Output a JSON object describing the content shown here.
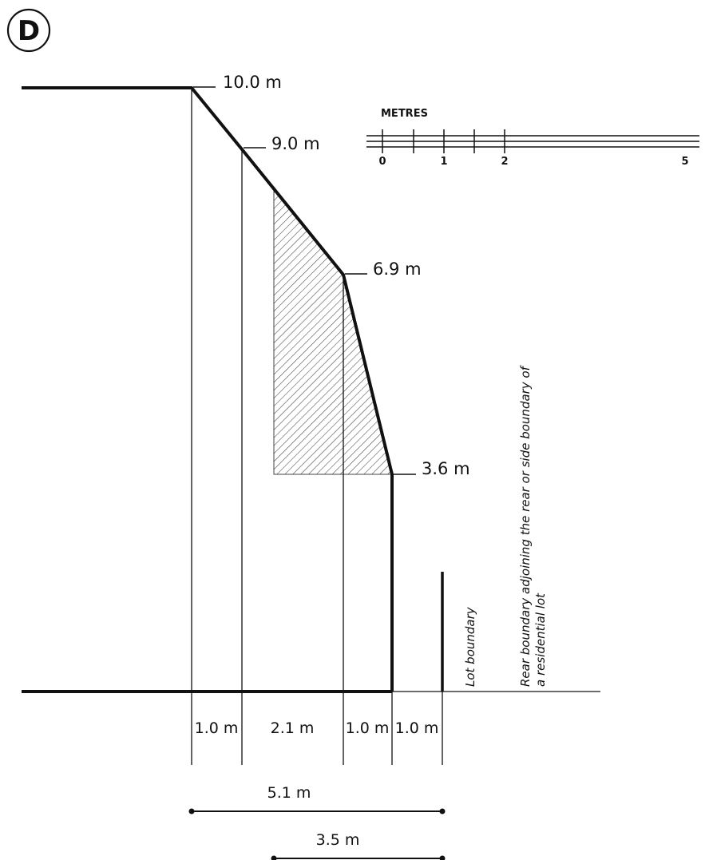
{
  "badge": {
    "letter": "D"
  },
  "heights": {
    "h1": "10.0 m",
    "h2": "9.0 m",
    "h3": "6.9 m",
    "h4": "3.6 m"
  },
  "scale": {
    "title": "METRES",
    "ticks": [
      "0",
      "1",
      "2",
      "5"
    ]
  },
  "dimensions": {
    "seg1": "1.0 m",
    "seg2": "2.1 m",
    "seg3": "1.0 m",
    "seg4": "1.0 m",
    "total1": "5.1 m",
    "total2": "3.5 m"
  },
  "labels": {
    "lot_boundary": "Lot boundary",
    "rear_boundary_line1": "Rear boundary adjoining the rear or side boundary of",
    "rear_boundary_line2": "a residential lot"
  },
  "colors": {
    "line": "#111111",
    "hatch": "#333333"
  }
}
